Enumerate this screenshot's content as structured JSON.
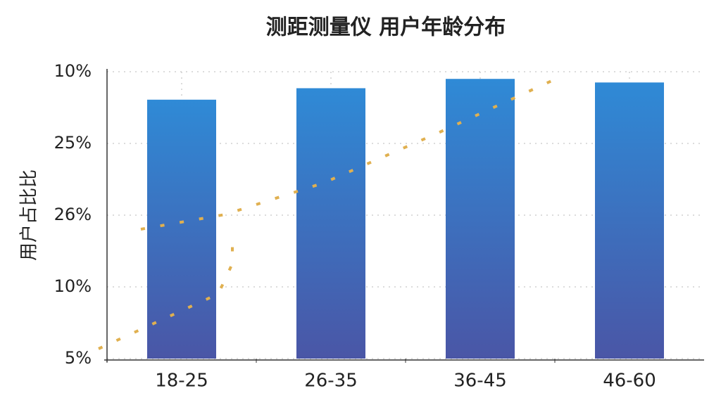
{
  "chart_data": {
    "type": "bar",
    "title": "测距测量仪  用户年龄分布",
    "y_label": "用户占比比",
    "categories": [
      "18-25",
      "26-35",
      "36-45",
      "46-60"
    ],
    "values": [
      3.61,
      3.77,
      3.9,
      3.85
    ],
    "color": "#2f8ad6",
    "ylim": [
      0,
      4
    ],
    "yticks": [
      {
        "value": 0,
        "label": "5%"
      },
      {
        "value": 1,
        "label": "10%"
      },
      {
        "value": 2,
        "label": "26%"
      },
      {
        "value": 3,
        "label": "25%"
      },
      {
        "value": 4,
        "label": "10%"
      }
    ],
    "grid": true
  }
}
